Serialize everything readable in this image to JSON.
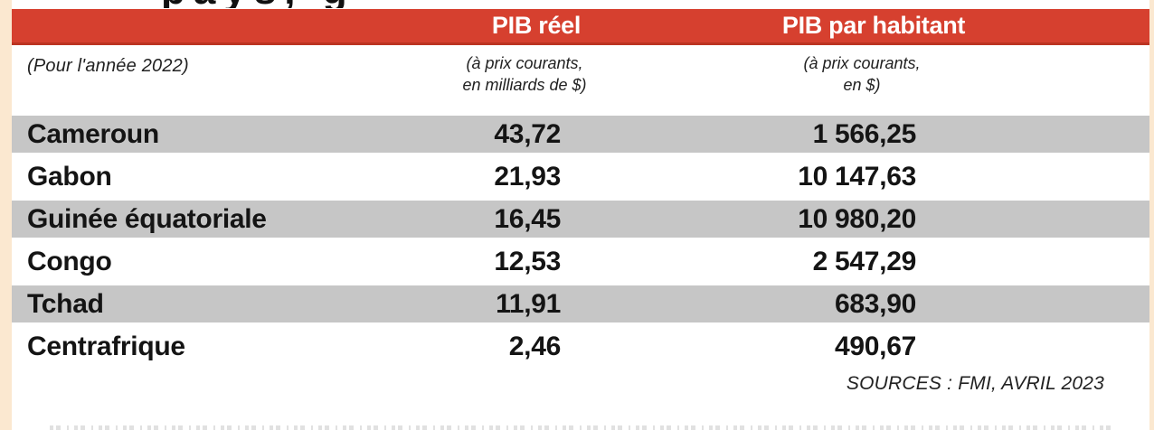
{
  "page": {
    "background_color": "#fbe8d0",
    "panel_color": "#ffffff",
    "accent_color": "#d6402f",
    "row_stripe_color": "#c6c6c6",
    "cropped_title_fragment": "pays, g"
  },
  "table": {
    "period_note": "(Pour l'année 2022)",
    "columns": [
      {
        "header": "PIB réel",
        "subtitle_line1": "(à prix courants,",
        "subtitle_line2": "en milliards de $)"
      },
      {
        "header": "PIB par habitant",
        "subtitle_line1": "(à prix courants,",
        "subtitle_line2": "en $)"
      }
    ],
    "rows": [
      {
        "country": "Cameroun",
        "pib_reel": "43,72",
        "pib_par_habitant": "1 566,25"
      },
      {
        "country": "Gabon",
        "pib_reel": "21,93",
        "pib_par_habitant": "10 147,63"
      },
      {
        "country": "Guinée équatoriale",
        "pib_reel": "16,45",
        "pib_par_habitant": "10 980,20"
      },
      {
        "country": "Congo",
        "pib_reel": "12,53",
        "pib_par_habitant": "2 547,29"
      },
      {
        "country": "Tchad",
        "pib_reel": "11,91",
        "pib_par_habitant": "683,90"
      },
      {
        "country": "Centrafrique",
        "pib_reel": "2,46",
        "pib_par_habitant": "490,67"
      }
    ],
    "source_note": "SOURCES : FMI, AVRIL 2023"
  },
  "chart_data": {
    "type": "table",
    "title": "(Pour l'année 2022)",
    "categories": [
      "Cameroun",
      "Gabon",
      "Guinée équatoriale",
      "Congo",
      "Tchad",
      "Centrafrique"
    ],
    "series": [
      {
        "name": "PIB réel (à prix courants, en milliards de $)",
        "values": [
          43.72,
          21.93,
          16.45,
          12.53,
          11.91,
          2.46
        ]
      },
      {
        "name": "PIB par habitant (à prix courants, en $)",
        "values": [
          1566.25,
          10147.63,
          10980.2,
          2547.29,
          683.9,
          490.67
        ]
      }
    ],
    "source": "SOURCES : FMI, AVRIL 2023"
  }
}
